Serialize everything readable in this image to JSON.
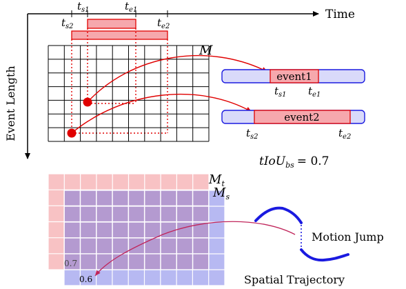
{
  "top": {
    "time_axis_label": "Time",
    "event_length_label": "Event Length",
    "map_label": "M",
    "ts1_label": "t",
    "ts1_sub": "s1",
    "te1_label": "t",
    "te1_sub": "e1",
    "ts2_label": "t",
    "ts2_sub": "s2",
    "te2_label": "t",
    "te2_sub": "e2",
    "grid_rows": 7,
    "grid_cols": 10
  },
  "events": [
    {
      "label": "event1",
      "start_label": "t",
      "start_sub": "s1",
      "end_label": "t",
      "end_sub": "e1"
    },
    {
      "label": "event2",
      "start_label": "t",
      "start_sub": "s2",
      "end_label": "t",
      "end_sub": "e2"
    }
  ],
  "tiou": {
    "lhs": "tIoU",
    "sub": "bs",
    "value": "= 0.7"
  },
  "bottom": {
    "map_t_label": "M",
    "map_t_sub": "t",
    "map_s_label": "M",
    "map_s_sub": "s",
    "value_t": "0.7",
    "value_s": "0.6",
    "motion_jump_label": "Motion Jump",
    "spatial_trajectory_label": "Spatial Trajectory"
  },
  "colors": {
    "red": "#e00000",
    "pink_fill": "#f6a8ad",
    "light_pink": "#f8c2c4",
    "blue_fill": "#b7b9f2",
    "purple_overlap": "#b49ad0",
    "dark_blue": "#1a1ae0",
    "crimson_arrow": "#c0245a"
  }
}
